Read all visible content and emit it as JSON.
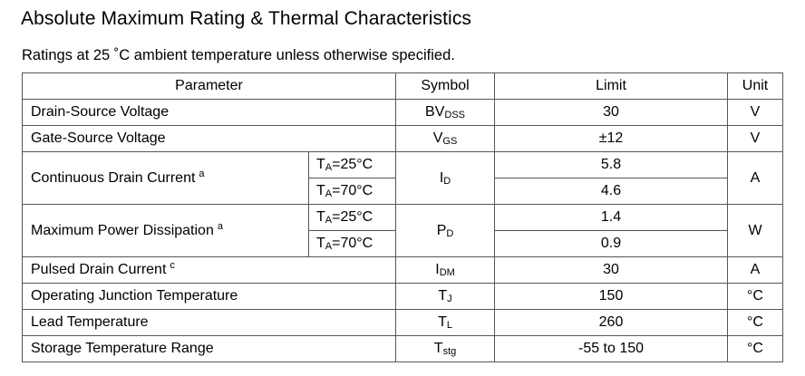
{
  "title": "Absolute Maximum Rating & Thermal Characteristics",
  "subtitle": "Ratings at 25 ˚C ambient temperature unless otherwise specified.",
  "headers": {
    "parameter": "Parameter",
    "symbol": "Symbol",
    "limit": "Limit",
    "unit": "Unit"
  },
  "rows": {
    "drain_source": {
      "param": "Drain-Source Voltage",
      "sym_main": "BV",
      "sym_sub": "DSS",
      "limit": "30",
      "unit": "V"
    },
    "gate_source": {
      "param": "Gate-Source Voltage",
      "sym_main": "V",
      "sym_sub": "GS",
      "limit": "±12",
      "unit": "V"
    },
    "cont_drain": {
      "param": "Continuous Drain Current",
      "note": "a",
      "sym_main": "I",
      "sym_sub": "D",
      "unit": "A",
      "cond1_main": "T",
      "cond1_sub": "A",
      "cond1_val": "=25°C",
      "limit1": "5.8",
      "cond2_main": "T",
      "cond2_sub": "A",
      "cond2_val": "=70°C",
      "limit2": "4.6"
    },
    "power_diss": {
      "param": "Maximum Power Dissipation",
      "note": "a",
      "sym_main": "P",
      "sym_sub": "D",
      "unit": "W",
      "cond1_main": "T",
      "cond1_sub": "A",
      "cond1_val": "=25°C",
      "limit1": "1.4",
      "cond2_main": "T",
      "cond2_sub": "A",
      "cond2_val": "=70°C",
      "limit2": "0.9"
    },
    "pulsed_drain": {
      "param": "Pulsed Drain Current",
      "note": "c",
      "sym_main": "I",
      "sym_sub": "DM",
      "limit": "30",
      "unit": "A"
    },
    "op_junction": {
      "param": "Operating Junction Temperature",
      "sym_main": "T",
      "sym_sub": "J",
      "limit": "150",
      "unit": "°C"
    },
    "lead_temp": {
      "param": "Lead Temperature",
      "sym_main": "T",
      "sym_sub": "L",
      "limit": "260",
      "unit": "°C"
    },
    "storage_temp": {
      "param": "Storage Temperature Range",
      "sym_main": "T",
      "sym_sub": "stg",
      "limit": "-55 to 150",
      "unit": "°C"
    }
  }
}
